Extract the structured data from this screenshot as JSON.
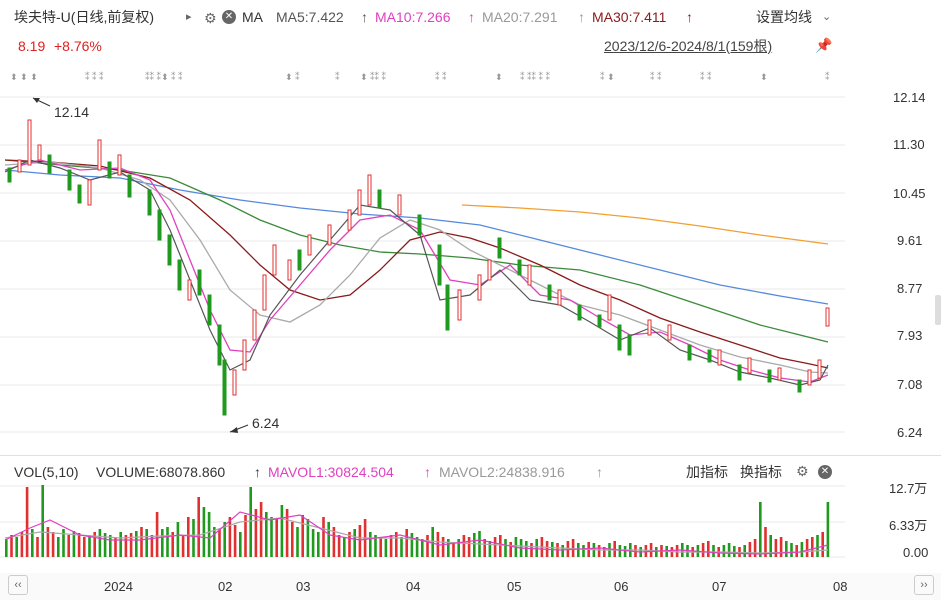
{
  "header": {
    "stock_title": "埃夫特-U",
    "period_desc": "(日线,前复权)",
    "play_arrow": "▸",
    "ma_label": "MA",
    "ma5": "MA5:7.422",
    "ma10": "MA10:7.266",
    "ma20": "MA20:7.291",
    "ma30": "MA30:7.411",
    "arrow": "↑",
    "settings_label": "设置均线",
    "price": "8.19",
    "change": "+8.76%",
    "date_range": "2023/12/6-2024/8/1(159根)"
  },
  "price_axis": [
    "12.14",
    "11.30",
    "10.45",
    "9.61",
    "8.77",
    "7.93",
    "7.08",
    "6.24"
  ],
  "annotations": {
    "high": "12.14",
    "low": "6.24"
  },
  "volume_header": {
    "vol_label": "VOL(5,10)",
    "volume": "VOLUME:68078.860",
    "mavol1": "MAVOL1:30824.504",
    "mavol2": "MAVOL2:24838.916",
    "add_indicator": "加指标",
    "switch_indicator": "换指标"
  },
  "volume_axis": [
    "12.7万",
    "6.33万",
    "0.00"
  ],
  "x_axis": [
    "2024",
    "02",
    "03",
    "04",
    "05",
    "06",
    "07",
    "08"
  ],
  "colors": {
    "up": "#e03030",
    "down": "#1f9a1f",
    "ma5": "#555555",
    "ma10": "#e040c0",
    "ma20": "#aaaaaa",
    "ma30": "#8b1a1a",
    "ma60": "#3a8a3a",
    "ma120": "#5588dd",
    "ma250": "#f0a030"
  }
}
